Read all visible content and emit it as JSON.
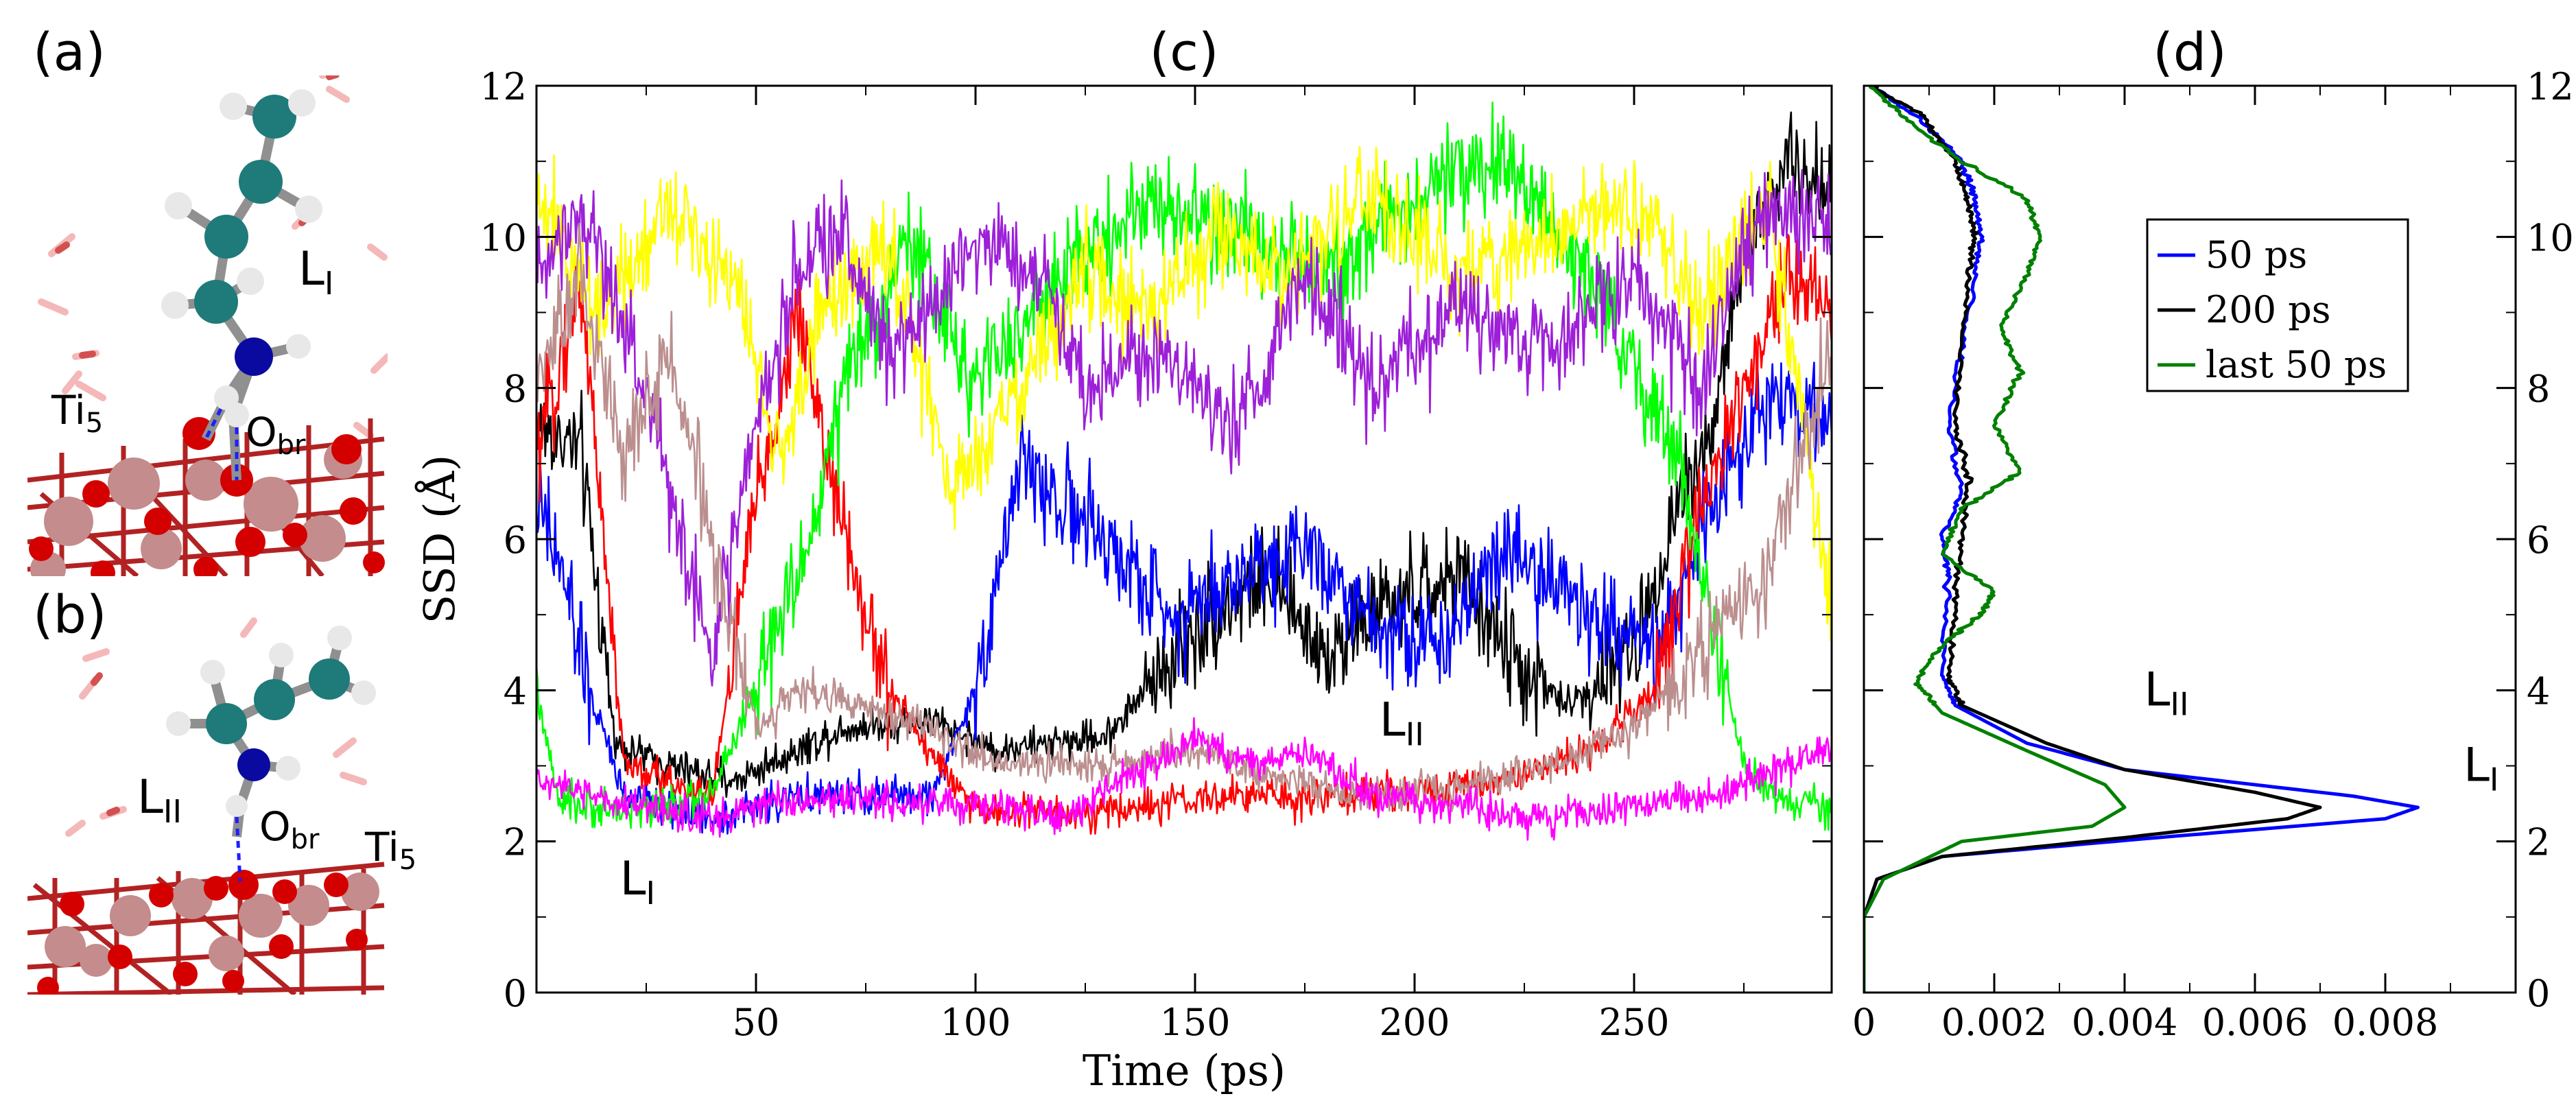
{
  "panels": {
    "a": {
      "label": "(a)",
      "annotations": [
        {
          "main": "L",
          "sub": "I"
        },
        {
          "main": "Ti",
          "sub": "5"
        },
        {
          "main": "O",
          "sub": "br"
        }
      ]
    },
    "b": {
      "label": "(b)",
      "annotations": [
        {
          "main": "L",
          "sub": "II"
        },
        {
          "main": "O",
          "sub": "br"
        },
        {
          "main": "Ti",
          "sub": "5"
        }
      ]
    }
  },
  "chart_data": [
    {
      "panel": "(c)",
      "type": "line",
      "title": "(c)",
      "xlabel": "Time (ps)",
      "ylabel": "SSD (Å)",
      "xlim": [
        0,
        295
      ],
      "ylim": [
        0,
        12
      ],
      "xticks": [
        50,
        100,
        150,
        200,
        250
      ],
      "yticks": [
        0,
        2,
        4,
        6,
        8,
        10,
        12
      ],
      "annotations": [
        {
          "main": "L",
          "sub": "II",
          "x": 192,
          "y": 3.4
        },
        {
          "main": "L",
          "sub": "I",
          "x": 19,
          "y": 1.3
        }
      ],
      "series": [
        {
          "name": "traj-black",
          "color": "#000000",
          "keypoints": [
            [
              0,
              7.5
            ],
            [
              10,
              7.2
            ],
            [
              18,
              3.3
            ],
            [
              30,
              3.0
            ],
            [
              45,
              2.8
            ],
            [
              70,
              3.5
            ],
            [
              90,
              3.6
            ],
            [
              105,
              3.2
            ],
            [
              130,
              3.4
            ],
            [
              150,
              4.8
            ],
            [
              165,
              5.5
            ],
            [
              180,
              4.5
            ],
            [
              190,
              5.0
            ],
            [
              210,
              5.5
            ],
            [
              225,
              4.2
            ],
            [
              235,
              3.8
            ],
            [
              250,
              4.5
            ],
            [
              260,
              6.5
            ],
            [
              268,
              7.5
            ],
            [
              275,
              9.8
            ],
            [
              285,
              11.0
            ],
            [
              295,
              10.5
            ]
          ]
        },
        {
          "name": "traj-blue",
          "color": "#0000ff",
          "keypoints": [
            [
              0,
              6.5
            ],
            [
              6,
              5.5
            ],
            [
              12,
              4.0
            ],
            [
              20,
              2.6
            ],
            [
              40,
              2.3
            ],
            [
              60,
              2.6
            ],
            [
              90,
              2.6
            ],
            [
              100,
              4.0
            ],
            [
              110,
              7.0
            ],
            [
              125,
              6.2
            ],
            [
              145,
              5.0
            ],
            [
              160,
              5.5
            ],
            [
              175,
              6.0
            ],
            [
              190,
              5.0
            ],
            [
              205,
              4.5
            ],
            [
              220,
              6.0
            ],
            [
              240,
              5.0
            ],
            [
              255,
              4.5
            ],
            [
              265,
              6.0
            ],
            [
              280,
              8.0
            ],
            [
              295,
              7.5
            ]
          ]
        },
        {
          "name": "traj-red",
          "color": "#ff0000",
          "keypoints": [
            [
              0,
              7.0
            ],
            [
              10,
              9.5
            ],
            [
              20,
              3.0
            ],
            [
              40,
              2.6
            ],
            [
              50,
              6.5
            ],
            [
              60,
              9.0
            ],
            [
              70,
              6.0
            ],
            [
              80,
              4.0
            ],
            [
              100,
              2.4
            ],
            [
              130,
              2.4
            ],
            [
              160,
              2.6
            ],
            [
              190,
              2.6
            ],
            [
              220,
              2.8
            ],
            [
              240,
              3.2
            ],
            [
              255,
              4.0
            ],
            [
              265,
              6.5
            ],
            [
              275,
              8.0
            ],
            [
              285,
              9.5
            ],
            [
              295,
              9.0
            ]
          ]
        },
        {
          "name": "traj-green",
          "color": "#00ff00",
          "keypoints": [
            [
              0,
              4.0
            ],
            [
              5,
              2.5
            ],
            [
              20,
              2.4
            ],
            [
              40,
              2.6
            ],
            [
              60,
              5.5
            ],
            [
              70,
              8.0
            ],
            [
              85,
              10.0
            ],
            [
              100,
              8.0
            ],
            [
              120,
              9.5
            ],
            [
              140,
              10.5
            ],
            [
              160,
              10.0
            ],
            [
              180,
              9.5
            ],
            [
              200,
              10.5
            ],
            [
              220,
              11.0
            ],
            [
              240,
              9.5
            ],
            [
              260,
              7.0
            ],
            [
              275,
              3.0
            ],
            [
              285,
              2.5
            ],
            [
              295,
              2.4
            ]
          ]
        },
        {
          "name": "traj-yellow",
          "color": "#ffff00",
          "keypoints": [
            [
              0,
              10.5
            ],
            [
              15,
              9.0
            ],
            [
              30,
              10.5
            ],
            [
              45,
              9.5
            ],
            [
              55,
              7.0
            ],
            [
              65,
              9.0
            ],
            [
              80,
              10.0
            ],
            [
              95,
              6.5
            ],
            [
              110,
              8.0
            ],
            [
              125,
              9.5
            ],
            [
              140,
              9.0
            ],
            [
              155,
              10.0
            ],
            [
              170,
              9.5
            ],
            [
              190,
              10.5
            ],
            [
              210,
              9.5
            ],
            [
              230,
              10.0
            ],
            [
              250,
              10.5
            ],
            [
              265,
              9.0
            ],
            [
              280,
              10.5
            ],
            [
              290,
              7.0
            ],
            [
              295,
              5.0
            ]
          ]
        },
        {
          "name": "traj-purple",
          "color": "#9d20d8",
          "keypoints": [
            [
              0,
              9.5
            ],
            [
              10,
              10.5
            ],
            [
              25,
              8.0
            ],
            [
              35,
              5.5
            ],
            [
              40,
              4.5
            ],
            [
              50,
              7.5
            ],
            [
              60,
              9.5
            ],
            [
              70,
              10.0
            ],
            [
              80,
              8.5
            ],
            [
              90,
              9.0
            ],
            [
              100,
              10.0
            ],
            [
              115,
              9.5
            ],
            [
              125,
              8.0
            ],
            [
              140,
              8.5
            ],
            [
              160,
              7.5
            ],
            [
              175,
              9.5
            ],
            [
              190,
              8.0
            ],
            [
              210,
              9.0
            ],
            [
              230,
              8.5
            ],
            [
              250,
              9.5
            ],
            [
              265,
              8.0
            ],
            [
              280,
              10.5
            ],
            [
              295,
              10.0
            ]
          ]
        },
        {
          "name": "traj-rosybrown",
          "color": "#bc8f8f",
          "keypoints": [
            [
              0,
              8.0
            ],
            [
              10,
              9.5
            ],
            [
              20,
              7.0
            ],
            [
              30,
              8.5
            ],
            [
              40,
              6.0
            ],
            [
              50,
              3.5
            ],
            [
              60,
              4.0
            ],
            [
              75,
              3.8
            ],
            [
              90,
              3.5
            ],
            [
              105,
              3.0
            ],
            [
              130,
              3.0
            ],
            [
              150,
              3.2
            ],
            [
              170,
              2.8
            ],
            [
              190,
              2.6
            ],
            [
              210,
              2.7
            ],
            [
              230,
              3.0
            ],
            [
              250,
              3.5
            ],
            [
              265,
              4.5
            ],
            [
              280,
              5.5
            ],
            [
              295,
              8.5
            ]
          ]
        },
        {
          "name": "traj-magenta",
          "color": "#ff00ff",
          "keypoints": [
            [
              0,
              2.8
            ],
            [
              20,
              2.5
            ],
            [
              40,
              2.3
            ],
            [
              60,
              2.6
            ],
            [
              80,
              2.5
            ],
            [
              100,
              2.5
            ],
            [
              120,
              2.3
            ],
            [
              140,
              3.0
            ],
            [
              150,
              3.4
            ],
            [
              160,
              3.0
            ],
            [
              175,
              3.2
            ],
            [
              190,
              2.6
            ],
            [
              210,
              2.5
            ],
            [
              230,
              2.3
            ],
            [
              250,
              2.5
            ],
            [
              270,
              2.6
            ],
            [
              285,
              3.0
            ],
            [
              295,
              3.3
            ]
          ]
        }
      ]
    },
    {
      "panel": "(d)",
      "type": "line",
      "title": "(d)",
      "xlabel": "",
      "ylabel": "",
      "xlim": [
        0,
        0.01
      ],
      "ylim": [
        0,
        12
      ],
      "xticks": [
        0,
        0.002,
        0.004,
        0.006,
        0.008
      ],
      "xtick_labels": [
        "0",
        "0.002",
        "0.004",
        "0.006",
        "0.008"
      ],
      "yticks": [
        0,
        2,
        4,
        6,
        8,
        10,
        12
      ],
      "legend": {
        "position": "top-right",
        "entries": [
          "50 ps",
          "200 ps",
          "last 50 ps"
        ]
      },
      "annotations": [
        {
          "main": "L",
          "sub": "II",
          "x": 0.0043,
          "y": 3.8
        },
        {
          "main": "L",
          "sub": "I",
          "x": 0.0092,
          "y": 2.8
        }
      ],
      "series": [
        {
          "name": "50 ps",
          "color": "#0000ff",
          "points": [
            [
              0,
              0
            ],
            [
              0,
              1.0
            ],
            [
              0.0002,
              1.5
            ],
            [
              0.0012,
              1.8
            ],
            [
              0.0045,
              2.05
            ],
            [
              0.008,
              2.3
            ],
            [
              0.0085,
              2.45
            ],
            [
              0.0075,
              2.6
            ],
            [
              0.004,
              2.95
            ],
            [
              0.0025,
              3.3
            ],
            [
              0.0014,
              3.8
            ],
            [
              0.0012,
              4.2
            ],
            [
              0.0013,
              5.5
            ],
            [
              0.0012,
              6.0
            ],
            [
              0.0015,
              6.6
            ],
            [
              0.0013,
              7.5
            ],
            [
              0.0015,
              8.5
            ],
            [
              0.0017,
              9.5
            ],
            [
              0.0018,
              10.0
            ],
            [
              0.0017,
              10.5
            ],
            [
              0.0015,
              11.0
            ],
            [
              0.0008,
              11.6
            ],
            [
              0.0001,
              12.0
            ]
          ]
        },
        {
          "name": "200 ps",
          "color": "#000000",
          "points": [
            [
              0,
              0
            ],
            [
              0,
              1.0
            ],
            [
              0.0002,
              1.5
            ],
            [
              0.0012,
              1.8
            ],
            [
              0.004,
              2.05
            ],
            [
              0.0065,
              2.3
            ],
            [
              0.007,
              2.45
            ],
            [
              0.006,
              2.65
            ],
            [
              0.004,
              2.95
            ],
            [
              0.0028,
              3.3
            ],
            [
              0.0015,
              3.8
            ],
            [
              0.0013,
              4.2
            ],
            [
              0.0014,
              5.2
            ],
            [
              0.0015,
              6.0
            ],
            [
              0.0016,
              6.8
            ],
            [
              0.0014,
              7.5
            ],
            [
              0.0015,
              8.5
            ],
            [
              0.0016,
              9.5
            ],
            [
              0.0017,
              10.0
            ],
            [
              0.0016,
              10.5
            ],
            [
              0.0014,
              11.0
            ],
            [
              0.0009,
              11.6
            ],
            [
              0.0001,
              12.0
            ]
          ]
        },
        {
          "name": "last 50 ps",
          "color": "#008000",
          "points": [
            [
              0,
              0
            ],
            [
              0,
              1.0
            ],
            [
              0.0003,
              1.5
            ],
            [
              0.0015,
              2.0
            ],
            [
              0.0035,
              2.2
            ],
            [
              0.004,
              2.45
            ],
            [
              0.0037,
              2.75
            ],
            [
              0.0025,
              3.2
            ],
            [
              0.0012,
              3.7
            ],
            [
              0.0008,
              4.1
            ],
            [
              0.0012,
              4.6
            ],
            [
              0.0018,
              5.0
            ],
            [
              0.002,
              5.3
            ],
            [
              0.0012,
              5.8
            ],
            [
              0.0015,
              6.4
            ],
            [
              0.0024,
              6.9
            ],
            [
              0.002,
              7.5
            ],
            [
              0.0024,
              8.2
            ],
            [
              0.0021,
              8.8
            ],
            [
              0.0025,
              9.5
            ],
            [
              0.0027,
              10.0
            ],
            [
              0.0025,
              10.5
            ],
            [
              0.0015,
              11.0
            ],
            [
              0.0006,
              11.6
            ],
            [
              0.0001,
              12.0
            ]
          ]
        }
      ]
    }
  ]
}
